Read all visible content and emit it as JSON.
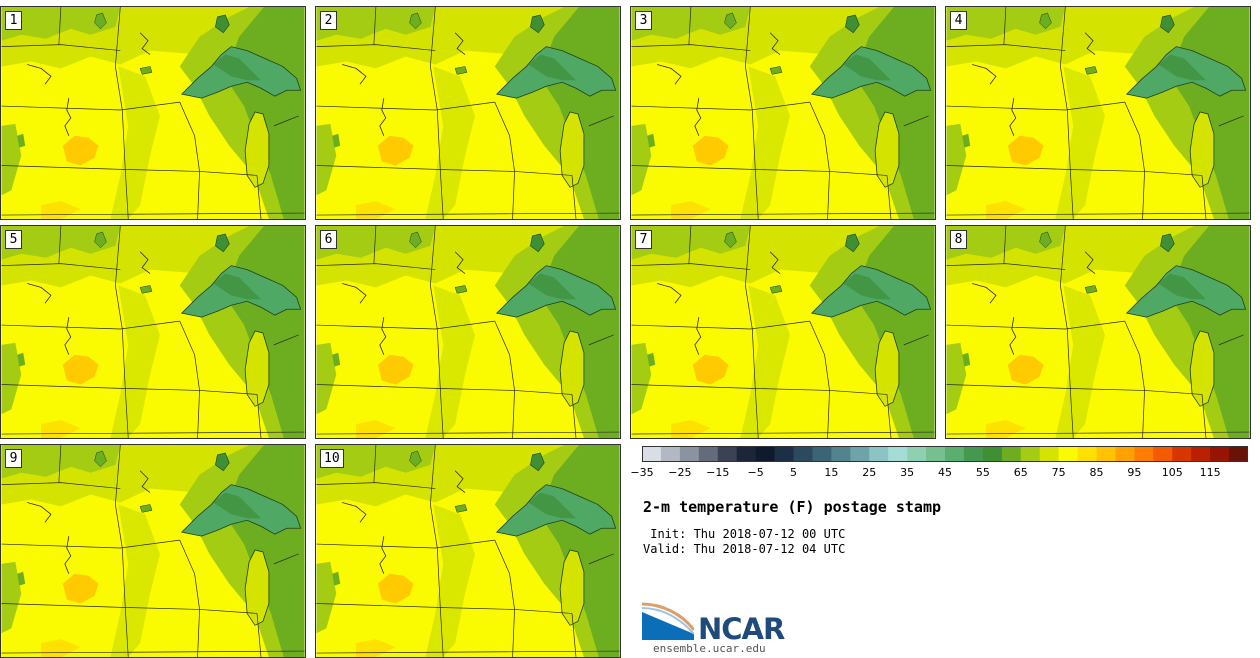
{
  "panels": [
    {
      "label": "1"
    },
    {
      "label": "2"
    },
    {
      "label": "3"
    },
    {
      "label": "4"
    },
    {
      "label": "5"
    },
    {
      "label": "6"
    },
    {
      "label": "7"
    },
    {
      "label": "8"
    },
    {
      "label": "9"
    },
    {
      "label": "10"
    }
  ],
  "colorbar": {
    "ticks": [
      "−35",
      "−25",
      "−15",
      "−5",
      "5",
      "15",
      "25",
      "35",
      "45",
      "55",
      "65",
      "75",
      "85",
      "95",
      "105",
      "115"
    ],
    "colors": [
      "#d9dde4",
      "#b3b8c2",
      "#8b92a0",
      "#646c7c",
      "#3a4254",
      "#1d2538",
      "#0f1a2c",
      "#1c2f45",
      "#2c4a5e",
      "#3b6575",
      "#52838f",
      "#6ea3aa",
      "#8cc4c5",
      "#a5ddd6",
      "#8fd0b0",
      "#76c08f",
      "#5aae6e",
      "#44994f",
      "#3f8f34",
      "#6cae1f",
      "#a4cc12",
      "#d4e400",
      "#fafa00",
      "#ffe100",
      "#ffc400",
      "#ffa200",
      "#ff7e00",
      "#f45a00",
      "#d83600",
      "#b82000",
      "#961400",
      "#6a1205"
    ]
  },
  "title": "2-m temperature (F) postage stamp",
  "init_line": " Init: Thu 2018-07-12 00 UTC",
  "valid_line": "Valid: Thu 2018-07-12 04 UTC",
  "logo": {
    "name": "NCAR",
    "url": "ensemble.ucar.edu"
  },
  "map_colors": {
    "yellow": "#fafa00",
    "yellow_green": "#d4e400",
    "light_green": "#a4cc12",
    "green": "#6cae1f",
    "dark_green": "#3f8f34",
    "lake": "#4fa864",
    "orange": "#ffc400"
  }
}
